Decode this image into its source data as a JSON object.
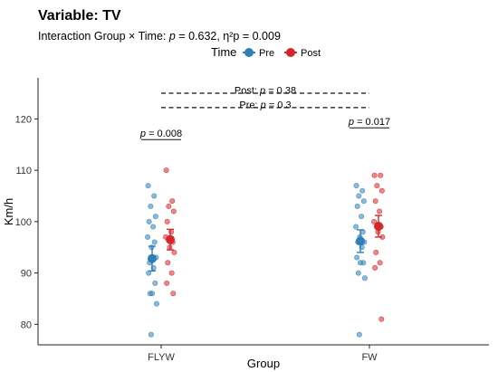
{
  "chart_data": {
    "type": "scatter",
    "title": "Variable: TV",
    "subtitle": "Interaction Group × Time: p = 0.632, η²p = 0.009",
    "subtitle_parts": [
      "Interaction Group × Time: ",
      "p",
      " = 0.632, η²p = 0.009"
    ],
    "xlabel": "Group",
    "ylabel": "Km/h",
    "categories": [
      "FLYW",
      "FW"
    ],
    "ylim": [
      76,
      128
    ],
    "y_ticks": [
      80,
      90,
      100,
      110,
      120
    ],
    "legend": {
      "title": "Time",
      "position": "top",
      "entries": [
        {
          "label": "Pre",
          "color": "#2e7fb8"
        },
        {
          "label": "Post",
          "color": "#d7262b"
        }
      ]
    },
    "series": [
      {
        "name": "Pre",
        "color": "#2e7fb8",
        "mean": [
          92.8,
          96.2
        ],
        "ci_low": [
          90.4,
          94.0
        ],
        "ci_high": [
          95.2,
          98.4
        ],
        "points": [
          [
            107,
            105,
            103,
            101,
            100,
            99,
            97,
            96,
            95,
            93,
            92,
            91,
            90,
            88,
            86,
            86,
            84,
            78
          ],
          [
            107,
            106,
            105,
            104,
            103,
            101,
            99,
            98,
            97,
            96,
            96,
            95,
            93,
            92,
            92,
            90,
            89,
            78
          ]
        ]
      },
      {
        "name": "Post",
        "color": "#d7262b",
        "mean": [
          96.5,
          99.1
        ],
        "ci_low": [
          94.5,
          97.0
        ],
        "ci_high": [
          98.5,
          101.2
        ],
        "points": [
          [
            110,
            104,
            103,
            102,
            100,
            98,
            97,
            96,
            95,
            94,
            92,
            90,
            88,
            86
          ],
          [
            109,
            109,
            107,
            106,
            104,
            102,
            100,
            99,
            98,
            97,
            94,
            92,
            91,
            81
          ]
        ]
      }
    ],
    "annotations": [
      {
        "category": "FLYW",
        "y": 116.5,
        "label_italic": "p",
        "label_rest": " = 0.008"
      },
      {
        "category": "FW",
        "y": 118.8,
        "label_italic": "p",
        "label_rest": " = 0.017"
      }
    ],
    "brackets": [
      {
        "label": "Post: ",
        "label_italic": "p",
        "label_rest": " = 0.38",
        "y": 125.0
      },
      {
        "label": "Pre: ",
        "label_italic": "p",
        "label_rest": " = 0.3",
        "y": 122.2
      }
    ],
    "grid": false
  }
}
